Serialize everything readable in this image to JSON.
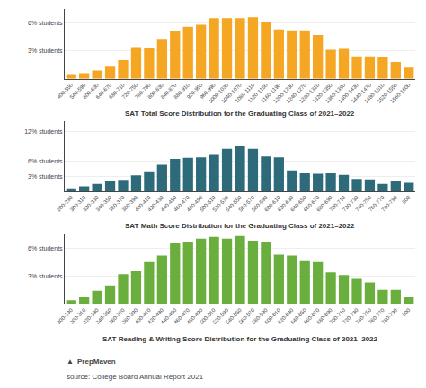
{
  "chart_data": [
    {
      "type": "bar",
      "title": "SAT Total Score Distribution for the Graduating Class of 2021–2022",
      "color": "#F5A623",
      "categories": [
        "400-550",
        "540-590",
        "600-630",
        "640-670",
        "680-710",
        "720-750",
        "760-790",
        "800-830",
        "840-870",
        "880-910",
        "920-950",
        "960-990",
        "1000-1030",
        "1040-1070",
        "1080-1110",
        "1120-1150",
        "1160-1190",
        "1200-1230",
        "1240-1270",
        "1280-1310",
        "1320-1350",
        "1360-1390",
        "1400-1430",
        "1440-1470",
        "1480-1510",
        "1520-1550",
        "1560-1600"
      ],
      "values": [
        0.5,
        0.6,
        0.9,
        1.3,
        2.0,
        3.4,
        3.3,
        4.3,
        5.1,
        5.6,
        5.8,
        6.5,
        6.5,
        6.5,
        6.6,
        6.1,
        5.3,
        5.2,
        5.2,
        4.7,
        3.1,
        3.2,
        2.4,
        2.4,
        2.3,
        1.8,
        1.2
      ],
      "ylim": [
        0,
        7.5
      ],
      "yticks": [
        {
          "value": 3,
          "label": "3% students"
        },
        {
          "value": 6,
          "label": "6% students"
        }
      ],
      "grid": true
    },
    {
      "type": "bar",
      "title": "SAT Math Score Distribution for the Graduating Class of 2021–2022",
      "color": "#2E6B7A",
      "categories": [
        "200-290",
        "300-310",
        "320-330",
        "340-350",
        "360-370",
        "380-390",
        "400-410",
        "420-430",
        "440-450",
        "460-470",
        "480-490",
        "500-510",
        "520-530",
        "540-550",
        "560-570",
        "580-590",
        "600-610",
        "620-630",
        "640-650",
        "660-670",
        "680-690",
        "700-710",
        "720-730",
        "740-750",
        "760-770",
        "780-790",
        "800"
      ],
      "values": [
        0.6,
        1.0,
        1.5,
        2.0,
        2.3,
        3.2,
        4.0,
        5.3,
        6.5,
        6.7,
        6.8,
        7.3,
        8.5,
        9.0,
        8.5,
        7.0,
        6.8,
        4.2,
        3.6,
        3.5,
        3.6,
        3.3,
        2.5,
        2.4,
        1.5,
        2.0,
        1.7
      ],
      "ylim": [
        0,
        14
      ],
      "yticks": [
        {
          "value": 3,
          "label": "3% students"
        },
        {
          "value": 6,
          "label": "6% students"
        },
        {
          "value": 12,
          "label": "12% students"
        }
      ],
      "grid": true
    },
    {
      "type": "bar",
      "title": "SAT Reading & Writing Score Distribution for the Graduating Class of 2021–2022",
      "color": "#6AAF3D",
      "categories": [
        "200-290",
        "300-310",
        "320-330",
        "340-350",
        "360-370",
        "380-390",
        "400-410",
        "420-430",
        "440-450",
        "460-470",
        "480-490",
        "500-510",
        "520-530",
        "540-550",
        "560-570",
        "580-590",
        "600-610",
        "620-630",
        "640-650",
        "660-670",
        "680-690",
        "700-710",
        "720-730",
        "740-750",
        "760-770",
        "780-790",
        "800"
      ],
      "values": [
        0.4,
        0.7,
        1.4,
        2.0,
        3.2,
        3.5,
        4.5,
        5.2,
        6.5,
        6.7,
        7.0,
        7.2,
        7.0,
        7.3,
        6.8,
        6.7,
        5.3,
        5.2,
        4.6,
        4.5,
        3.4,
        3.1,
        2.7,
        2.3,
        1.5,
        1.5,
        0.7
      ],
      "ylim": [
        0,
        7.5
      ],
      "yticks": [
        {
          "value": 3,
          "label": "3% students"
        },
        {
          "value": 6,
          "label": "6% students"
        }
      ],
      "grid": true,
      "annotations": [
        "▲",
        "PrepMaven",
        "source: College Board Annual Report 2021"
      ]
    }
  ]
}
